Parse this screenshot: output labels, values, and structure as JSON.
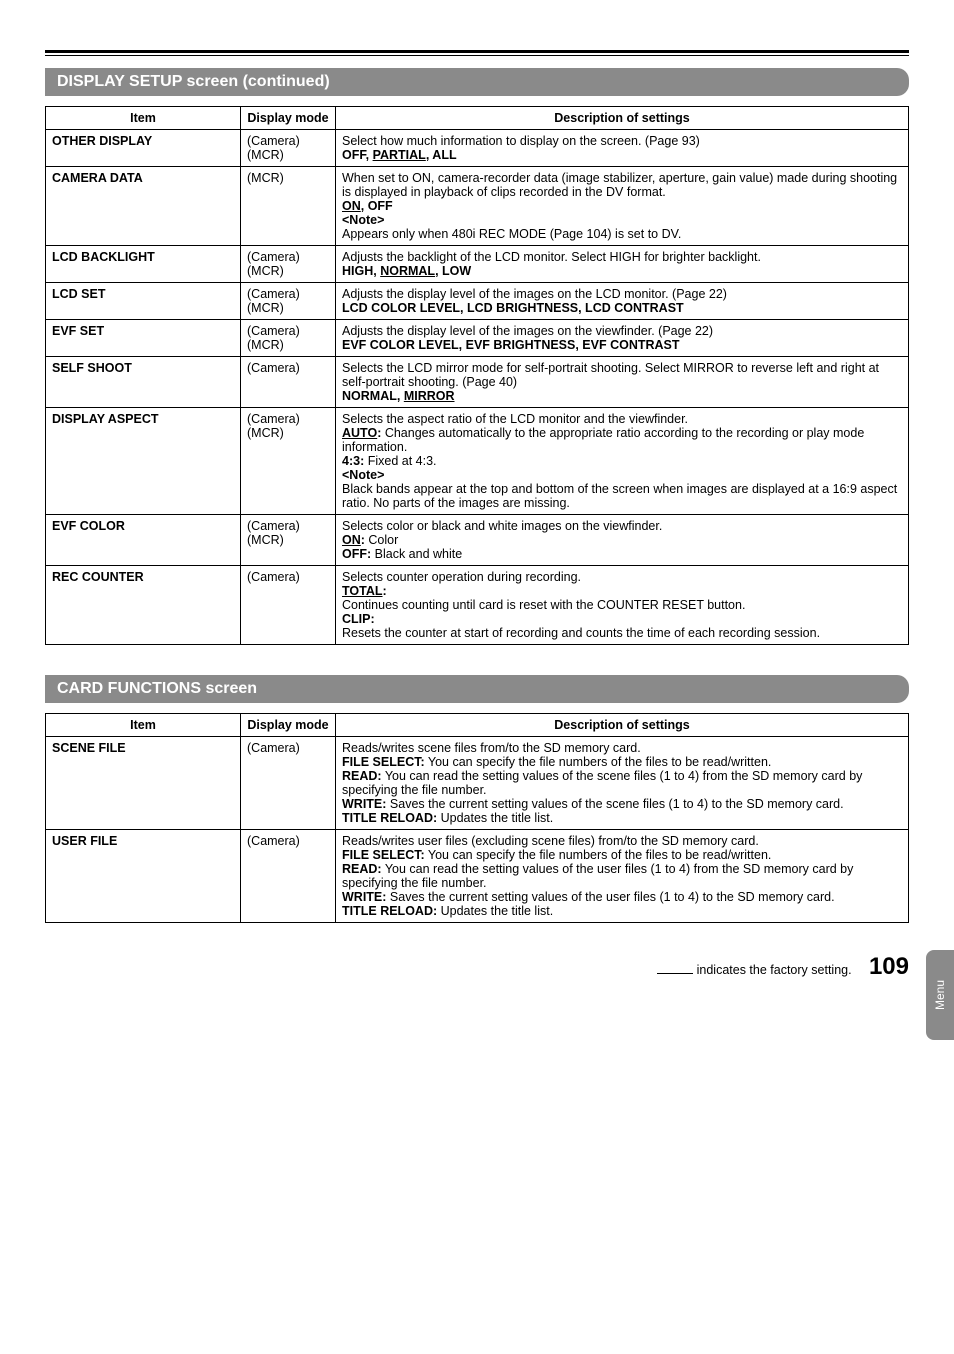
{
  "sections": [
    {
      "title": "DISPLAY SETUP screen (continued)",
      "table": {
        "headers": {
          "item": "Item",
          "mode": "Display mode",
          "desc": "Description of settings"
        },
        "rows": [
          {
            "item": "OTHER DISPLAY",
            "mode": "(Camera)\n(MCR)",
            "desc_parts": [
              {
                "t": "plain",
                "v": "Select how much information to display on the screen. (Page 93)"
              },
              {
                "t": "br"
              },
              {
                "t": "bold",
                "v": "OFF, "
              },
              {
                "t": "bold_ul",
                "v": "PARTIAL"
              },
              {
                "t": "bold",
                "v": ", ALL"
              }
            ]
          },
          {
            "item": "CAMERA DATA",
            "mode": "(MCR)",
            "desc_parts": [
              {
                "t": "plain",
                "v": "When set to ON, camera-recorder data (image stabilizer, aperture, gain value) made during shooting is displayed in playback of clips recorded in the DV format."
              },
              {
                "t": "br"
              },
              {
                "t": "bold_ul",
                "v": "ON"
              },
              {
                "t": "bold",
                "v": ", OFF"
              },
              {
                "t": "br"
              },
              {
                "t": "bold",
                "v": "<Note>"
              },
              {
                "t": "br"
              },
              {
                "t": "plain",
                "v": "Appears only when 480i REC MODE (Page 104) is set to DV."
              }
            ]
          },
          {
            "item": "LCD BACKLIGHT",
            "mode": "(Camera)\n(MCR)",
            "desc_parts": [
              {
                "t": "plain",
                "v": "Adjusts the backlight of the LCD monitor. Select HIGH for brighter backlight."
              },
              {
                "t": "br"
              },
              {
                "t": "bold",
                "v": "HIGH, "
              },
              {
                "t": "bold_ul",
                "v": "NORMAL"
              },
              {
                "t": "bold",
                "v": ", LOW"
              }
            ]
          },
          {
            "item": "LCD SET",
            "mode": "(Camera)\n(MCR)",
            "desc_parts": [
              {
                "t": "plain",
                "v": "Adjusts the display level of the images on the LCD monitor. (Page 22)"
              },
              {
                "t": "br"
              },
              {
                "t": "bold",
                "v": "LCD COLOR LEVEL, LCD BRIGHTNESS, LCD CONTRAST"
              }
            ]
          },
          {
            "item": "EVF SET",
            "mode": "(Camera)\n(MCR)",
            "desc_parts": [
              {
                "t": "plain",
                "v": "Adjusts the display level of the images on the viewfinder. (Page 22)"
              },
              {
                "t": "br"
              },
              {
                "t": "bold",
                "v": "EVF COLOR LEVEL, EVF BRIGHTNESS, EVF CONTRAST"
              }
            ]
          },
          {
            "item": "SELF SHOOT",
            "mode": "(Camera)",
            "desc_parts": [
              {
                "t": "plain",
                "v": "Selects the LCD mirror mode for self-portrait shooting. Select MIRROR to reverse left and right at self-portrait shooting. (Page 40)"
              },
              {
                "t": "br"
              },
              {
                "t": "bold",
                "v": "NORMAL, "
              },
              {
                "t": "bold_ul",
                "v": "MIRROR"
              }
            ]
          },
          {
            "item": "DISPLAY ASPECT",
            "mode": "(Camera)\n(MCR)",
            "desc_parts": [
              {
                "t": "plain",
                "v": "Selects the aspect ratio of the LCD monitor and the viewfinder."
              },
              {
                "t": "br"
              },
              {
                "t": "bold_ul",
                "v": "AUTO"
              },
              {
                "t": "bold",
                "v": ":"
              },
              {
                "t": "plain",
                "v": " Changes automatically to the appropriate ratio according to the recording or play mode information."
              },
              {
                "t": "br"
              },
              {
                "t": "bold",
                "v": "4:3:"
              },
              {
                "t": "plain",
                "v": " Fixed at 4:3."
              },
              {
                "t": "br"
              },
              {
                "t": "bold",
                "v": "<Note>"
              },
              {
                "t": "br"
              },
              {
                "t": "plain",
                "v": "Black bands appear at the top and bottom of the screen when images are displayed at a 16:9 aspect ratio. No parts of the images are missing."
              }
            ]
          },
          {
            "item": "EVF COLOR",
            "mode": "(Camera)\n(MCR)",
            "desc_parts": [
              {
                "t": "plain",
                "v": "Selects color or black and white images on the viewfinder."
              },
              {
                "t": "br"
              },
              {
                "t": "bold_ul",
                "v": "ON"
              },
              {
                "t": "bold",
                "v": ":"
              },
              {
                "t": "plain",
                "v": " Color"
              },
              {
                "t": "br"
              },
              {
                "t": "bold",
                "v": "OFF:"
              },
              {
                "t": "plain",
                "v": " Black and white"
              }
            ]
          },
          {
            "item": "REC COUNTER",
            "mode": "(Camera)",
            "desc_parts": [
              {
                "t": "plain",
                "v": "Selects counter operation during recording."
              },
              {
                "t": "br"
              },
              {
                "t": "bold_ul",
                "v": "TOTAL"
              },
              {
                "t": "bold",
                "v": ":"
              },
              {
                "t": "br"
              },
              {
                "t": "plain",
                "v": "Continues counting until card is reset with the COUNTER RESET button."
              },
              {
                "t": "br"
              },
              {
                "t": "bold",
                "v": "CLIP:"
              },
              {
                "t": "br"
              },
              {
                "t": "plain",
                "v": "Resets the counter at start of recording and counts the time of each recording session."
              }
            ]
          }
        ]
      }
    },
    {
      "title": "CARD FUNCTIONS screen",
      "table": {
        "headers": {
          "item": "Item",
          "mode": "Display mode",
          "desc": "Description of settings"
        },
        "rows": [
          {
            "item": "SCENE FILE",
            "mode": "(Camera)",
            "desc_parts": [
              {
                "t": "plain",
                "v": "Reads/writes scene files from/to the SD memory card."
              },
              {
                "t": "br"
              },
              {
                "t": "bold",
                "v": "FILE SELECT:"
              },
              {
                "t": "plain",
                "v": " You can specify the file numbers of the files to be read/written."
              },
              {
                "t": "br"
              },
              {
                "t": "bold",
                "v": "READ:"
              },
              {
                "t": "plain",
                "v": " You can read the setting values of the scene files (1 to 4) from the SD memory card by specifying the file number."
              },
              {
                "t": "br"
              },
              {
                "t": "bold",
                "v": "WRITE:"
              },
              {
                "t": "plain",
                "v": " Saves the current setting values of the scene files (1 to 4) to the SD memory card."
              },
              {
                "t": "br"
              },
              {
                "t": "bold",
                "v": "TITLE RELOAD:"
              },
              {
                "t": "plain",
                "v": " Updates the title list."
              }
            ]
          },
          {
            "item": "USER FILE",
            "mode": "(Camera)",
            "desc_parts": [
              {
                "t": "plain",
                "v": "Reads/writes user files (excluding scene files) from/to the SD memory card."
              },
              {
                "t": "br"
              },
              {
                "t": "bold",
                "v": "FILE SELECT:"
              },
              {
                "t": "plain",
                "v": " You can specify the file numbers of the files to be read/written."
              },
              {
                "t": "br"
              },
              {
                "t": "bold",
                "v": "READ:"
              },
              {
                "t": "plain",
                "v": " You can read the setting values of the user files (1 to 4) from the SD memory card by specifying the file number."
              },
              {
                "t": "br"
              },
              {
                "t": "bold",
                "v": "WRITE:"
              },
              {
                "t": "plain",
                "v": " Saves the current setting values of the user files (1 to 4) to the SD memory card."
              },
              {
                "t": "br"
              },
              {
                "t": "bold",
                "v": "TITLE RELOAD:"
              },
              {
                "t": "plain",
                "v": " Updates the title list."
              }
            ]
          }
        ]
      }
    }
  ],
  "footer": {
    "note_suffix": "indicates the factory setting.",
    "page_number": "109",
    "tab_label": "Menu"
  }
}
